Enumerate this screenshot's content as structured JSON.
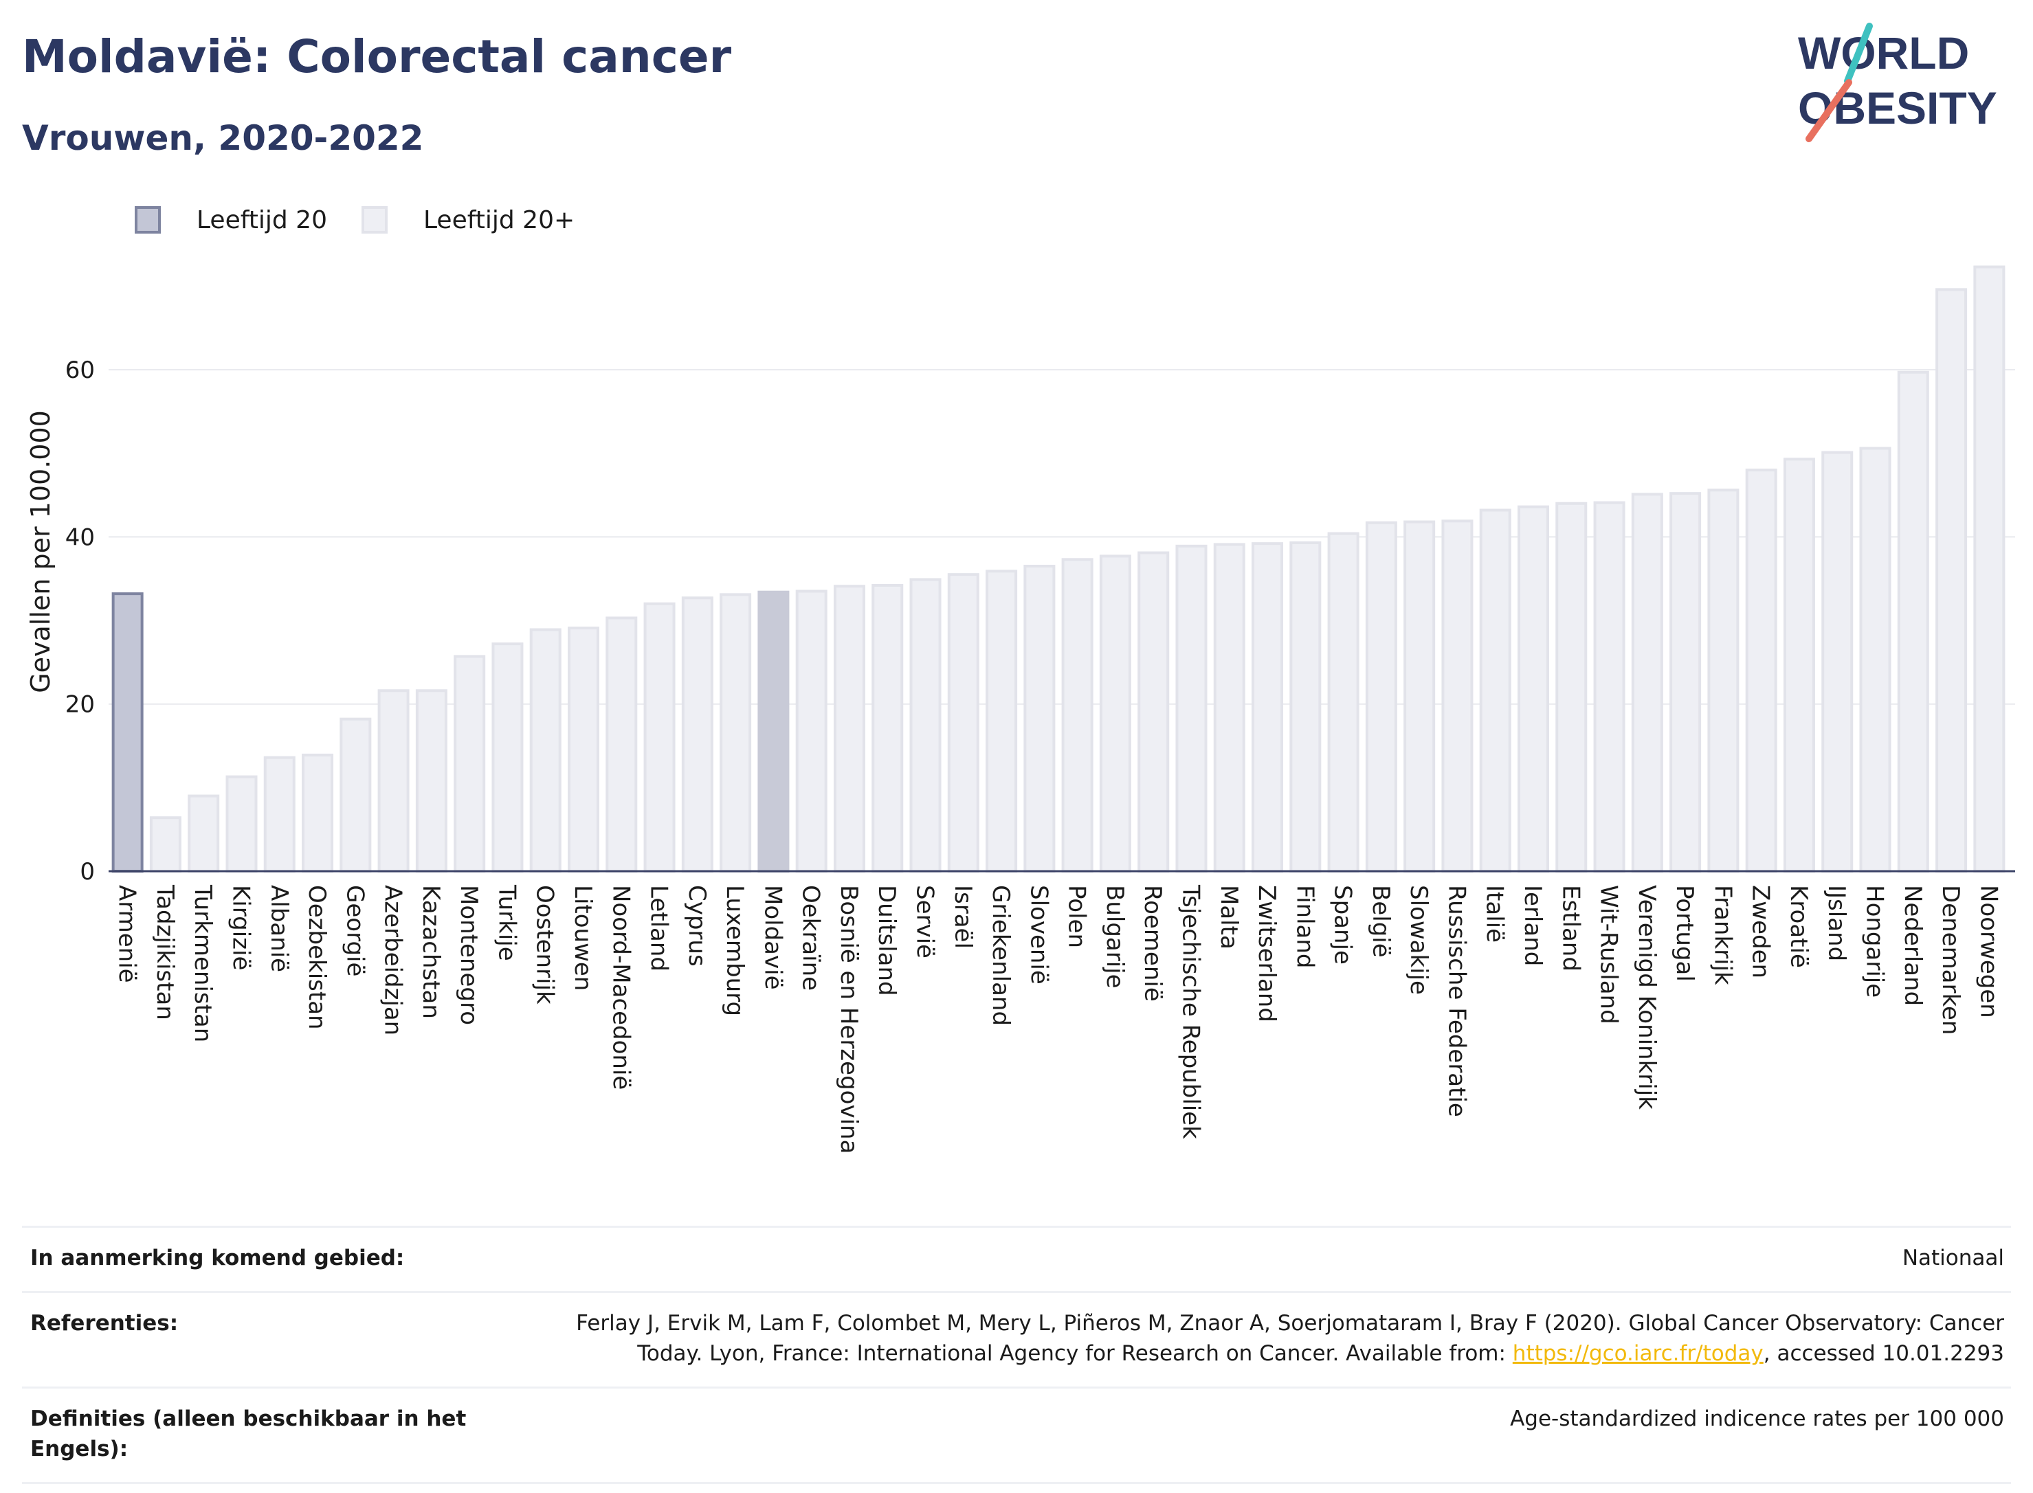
{
  "header": {
    "title": "Moldavië: Colorectal cancer",
    "subtitle": "Vrouwen, 2020-2022"
  },
  "logo": {
    "line1": "WORLD",
    "line2": "OBESITY"
  },
  "legend": {
    "items": [
      {
        "label": "Leeftijd 20",
        "color": "#c3c6d6",
        "border": "#7e84a0"
      },
      {
        "label": "Leeftijd 20+",
        "color": "#eeeff4",
        "border": "#e2e3ea"
      }
    ]
  },
  "chart_data": {
    "type": "bar",
    "ylabel": "Gevallen per 100.000",
    "ylim": [
      0,
      73
    ],
    "yticks": [
      0,
      20,
      40,
      60
    ],
    "grid": true,
    "categories": [
      "Armenië",
      "Tadzjikistan",
      "Turkmenistan",
      "Kirgizië",
      "Albanië",
      "Oezbekistan",
      "Georgië",
      "Azerbeidzjan",
      "Kazachstan",
      "Montenegro",
      "Turkije",
      "Oostenrijk",
      "Litouwen",
      "Noord-Macedonië",
      "Letland",
      "Cyprus",
      "Luxemburg",
      "Moldavië",
      "Oekraïne",
      "Bosnië en Herzegovina",
      "Duitsland",
      "Servië",
      "Israël",
      "Griekenland",
      "Slovenië",
      "Polen",
      "Bulgarije",
      "Roemenië",
      "Tsjechische Republiek",
      "Malta",
      "Zwitserland",
      "Finland",
      "Spanje",
      "België",
      "Slowakije",
      "Russische Federatie",
      "Italië",
      "Ierland",
      "Estland",
      "Wit-Rusland",
      "Verenigd Koninkrijk",
      "Portugal",
      "Frankrijk",
      "Zweden",
      "Kroatië",
      "IJsland",
      "Hongarije",
      "Nederland",
      "Denemarken",
      "Noorwegen"
    ],
    "values": [
      33.2,
      6.4,
      9.0,
      11.3,
      13.6,
      13.9,
      18.2,
      21.6,
      21.6,
      25.7,
      27.2,
      28.9,
      29.1,
      30.3,
      32.0,
      32.7,
      33.1,
      33.4,
      33.5,
      34.1,
      34.2,
      34.9,
      35.5,
      35.9,
      36.5,
      37.3,
      37.7,
      38.1,
      38.9,
      39.1,
      39.2,
      39.3,
      40.4,
      41.7,
      41.8,
      41.9,
      43.2,
      43.6,
      44.0,
      44.1,
      45.1,
      45.2,
      45.6,
      48.0,
      49.3,
      50.1,
      50.6,
      59.7,
      69.6,
      72.3
    ],
    "styles": {
      "Armenië": "age20",
      "Moldavië": "highlight"
    },
    "colors": {
      "default_fill": "#eeeff4",
      "default_stroke": "#e2e3ea",
      "age20_fill": "#c3c6d6",
      "age20_stroke": "#7e84a0",
      "highlight_fill": "#c8cad7",
      "highlight_stroke": "#c8cad7",
      "axis": "#3d4468",
      "grid": "#e8e9ee"
    }
  },
  "footer": {
    "rows": [
      {
        "label": "In aanmerking komend gebied:",
        "value": "Nationaal"
      },
      {
        "label": "Referenties:",
        "value_pre": "Ferlay J, Ervik M, Lam F, Colombet M, Mery L, Piñeros M, Znaor A, Soerjomataram I, Bray F (2020). Global Cancer Observatory: Cancer Today. Lyon, France: International Agency for Research on Cancer. Available from: ",
        "link": "https://gco.iarc.fr/today",
        "value_post": ", accessed 10.01.2293"
      },
      {
        "label": "Definities (alleen beschikbaar in het Engels):",
        "value": "Age-standardized indicence rates per 100 000"
      }
    ]
  }
}
